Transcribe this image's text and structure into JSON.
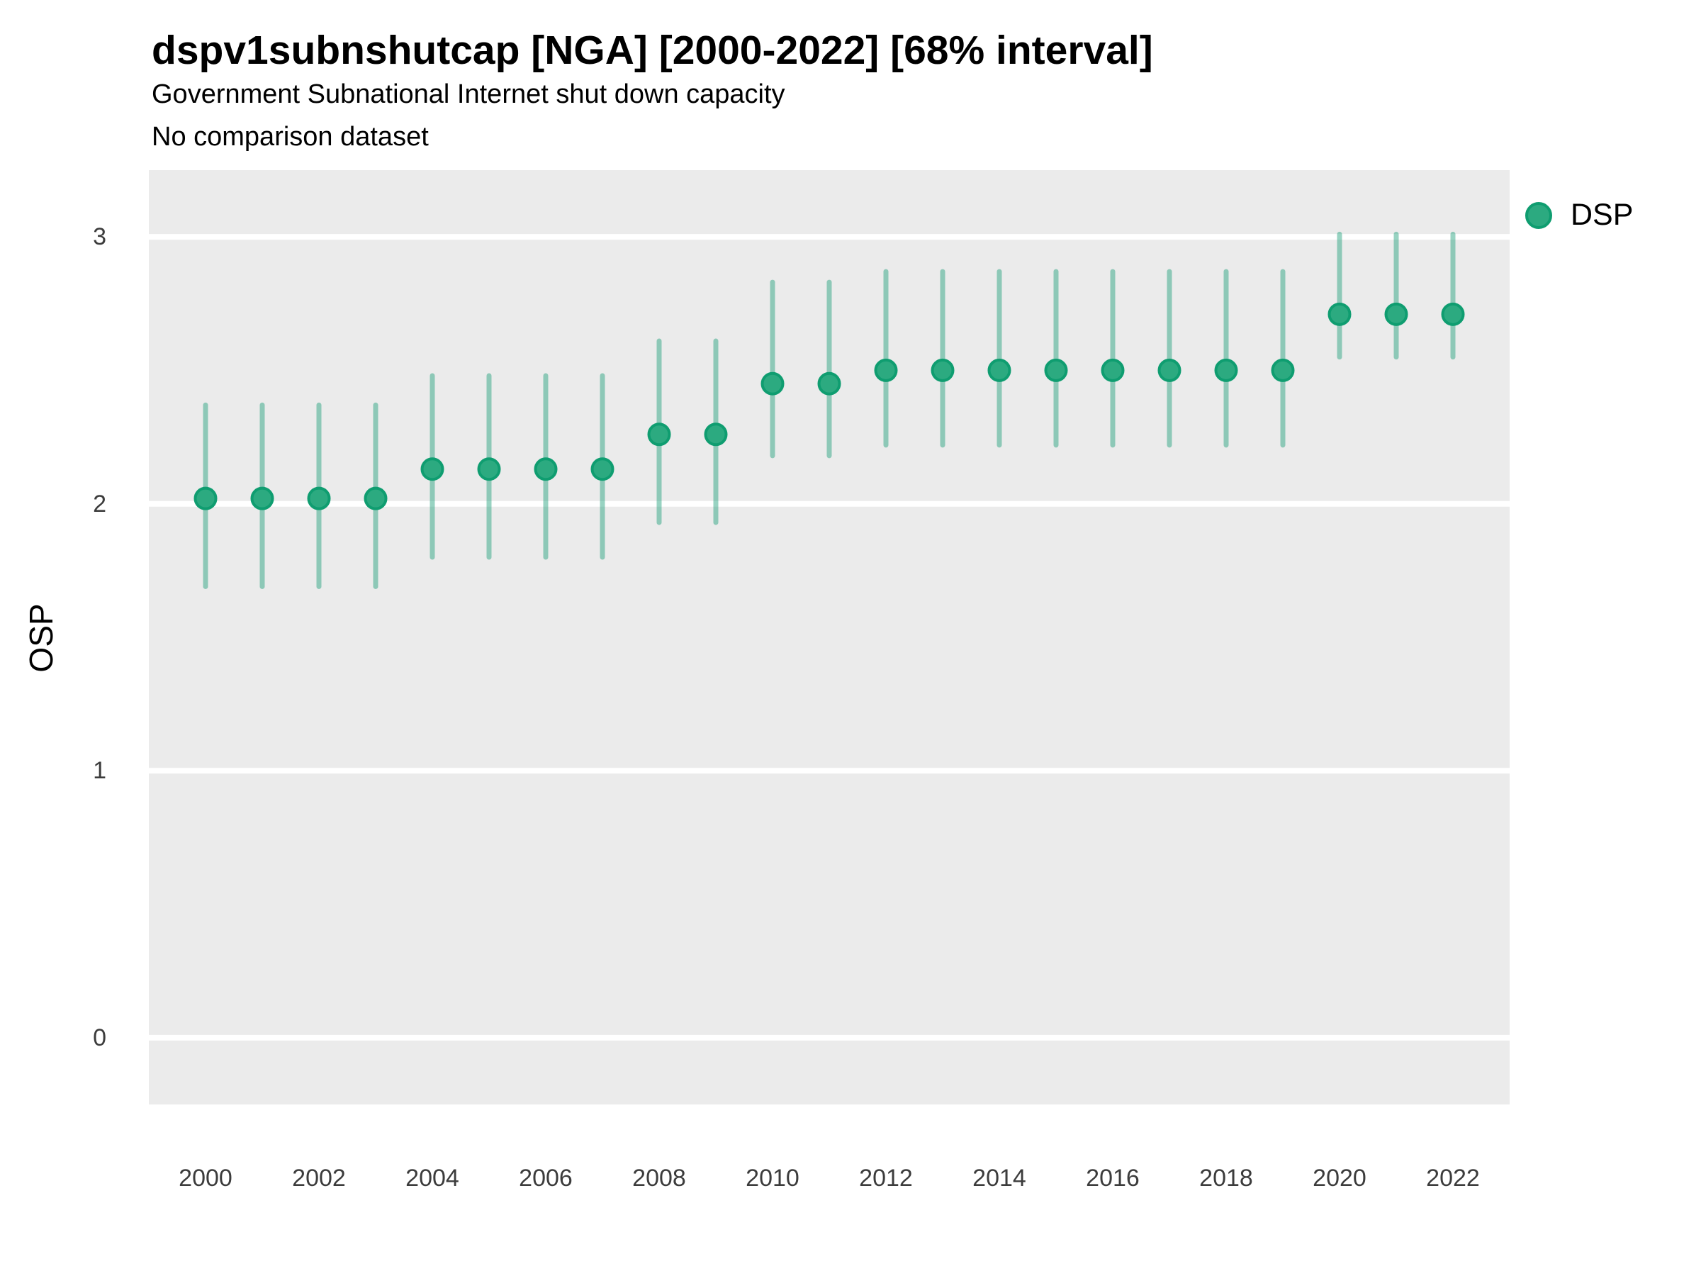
{
  "header": {
    "title": "dspv1subnshutcap [NGA] [2000-2022] [68% interval]",
    "subtitle": "Government Subnational Internet shut down capacity",
    "note": "No comparison dataset"
  },
  "colors": {
    "page_background": "#FFFFFF",
    "panel_background": "#EBEBEB",
    "gridline": "#FFFFFF",
    "point_fill": "#2CAA80",
    "point_stroke": "#0F9D70",
    "interval_line": "rgba(27,158,119,0.45)",
    "tick_text": "#3C3C3C",
    "text": "#000000"
  },
  "chart_data": {
    "type": "scatter",
    "title": "dspv1subnshutcap [NGA] [2000-2022] [68% interval]",
    "subtitle": "Government Subnational Internet shut down capacity",
    "note": "No comparison dataset",
    "xlabel": "",
    "ylabel": "OSP",
    "interval": "68%",
    "legend_position": "right",
    "grid": "major-horizontal",
    "xlim": [
      1999,
      2023
    ],
    "ylim": [
      -0.25,
      3.25
    ],
    "y_gridlines": [
      3,
      2,
      1,
      0
    ],
    "x_ticks": [
      2000,
      2002,
      2004,
      2006,
      2008,
      2010,
      2012,
      2014,
      2016,
      2018,
      2020,
      2022
    ],
    "series": [
      {
        "name": "DSP",
        "x": [
          2000,
          2001,
          2002,
          2003,
          2004,
          2005,
          2006,
          2007,
          2008,
          2009,
          2010,
          2011,
          2012,
          2013,
          2014,
          2015,
          2016,
          2017,
          2018,
          2019,
          2020,
          2021,
          2022
        ],
        "estimate": [
          2.02,
          2.02,
          2.02,
          2.02,
          2.13,
          2.13,
          2.13,
          2.13,
          2.26,
          2.26,
          2.45,
          2.45,
          2.5,
          2.5,
          2.5,
          2.5,
          2.5,
          2.5,
          2.5,
          2.5,
          2.71,
          2.71,
          2.71
        ],
        "lower": [
          1.69,
          1.69,
          1.69,
          1.69,
          1.8,
          1.8,
          1.8,
          1.8,
          1.93,
          1.93,
          2.18,
          2.18,
          2.22,
          2.22,
          2.22,
          2.22,
          2.22,
          2.22,
          2.22,
          2.22,
          2.55,
          2.55,
          2.55
        ],
        "upper": [
          2.37,
          2.37,
          2.37,
          2.37,
          2.48,
          2.48,
          2.48,
          2.48,
          2.61,
          2.61,
          2.83,
          2.83,
          2.87,
          2.87,
          2.87,
          2.87,
          2.87,
          2.87,
          2.87,
          2.87,
          3.01,
          3.01,
          3.01
        ]
      }
    ]
  }
}
